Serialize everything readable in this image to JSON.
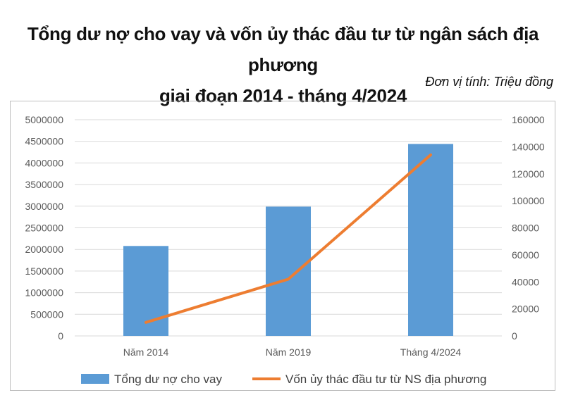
{
  "title_line1": "Tổng dư nợ cho vay và vốn ủy thác đầu tư từ ngân sách địa phương",
  "title_line2": "giai đoạn 2014 - tháng 4/2024",
  "unit_label": "Đơn vị tính: Triệu đồng",
  "chart_data": {
    "type": "bar",
    "categories": [
      "Năm 2014",
      "Năm 2019",
      "Tháng 4/2024"
    ],
    "series": [
      {
        "name": "Tổng dư nợ cho vay",
        "type": "bar",
        "axis": "left",
        "color": "#5B9BD5",
        "values": [
          2080000,
          2990000,
          4440000
        ]
      },
      {
        "name": "Vốn ủy thác đầu tư từ NS địa phương",
        "type": "line",
        "axis": "right",
        "color": "#ED7D31",
        "values": [
          10000,
          42000,
          134000
        ]
      }
    ],
    "y_left": {
      "min": 0,
      "max": 5000000,
      "ticks": [
        "0",
        "500000",
        "1000000",
        "1500000",
        "2000000",
        "2500000",
        "3000000",
        "3500000",
        "4000000",
        "4500000",
        "5000000"
      ]
    },
    "y_right": {
      "min": 0,
      "max": 160000,
      "ticks": [
        "0",
        "20000",
        "40000",
        "60000",
        "80000",
        "100000",
        "120000",
        "140000",
        "160000"
      ]
    },
    "grid": true,
    "legend_position": "bottom"
  }
}
